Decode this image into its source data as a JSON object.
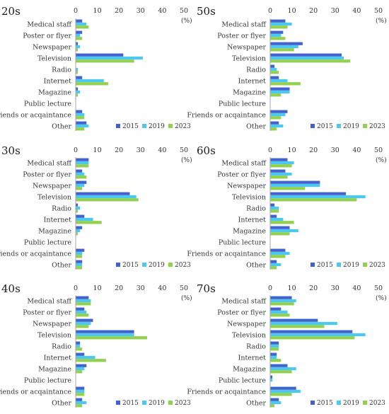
{
  "chart_data": [
    {
      "type": "bar",
      "orientation": "horizontal",
      "title": "20s",
      "unit": "(%)",
      "xlim": [
        0,
        50
      ],
      "xticks": [
        0,
        10,
        20,
        30,
        40,
        50
      ],
      "categories": [
        "Medical staff",
        "Poster or flyer",
        "Newspaper",
        "Television",
        "Radio",
        "Internet",
        "Magazine",
        "Public lecture",
        "Friends or acqaintance",
        "Other"
      ],
      "series": [
        {
          "name": "2015",
          "values": [
            3,
            3,
            1,
            22,
            0,
            3,
            1,
            0,
            3,
            5
          ]
        },
        {
          "name": "2019",
          "values": [
            5,
            2,
            2,
            31,
            1,
            13,
            2,
            0,
            4,
            6
          ]
        },
        {
          "name": "2023",
          "values": [
            6,
            3,
            1,
            27,
            1,
            15,
            1,
            0,
            4,
            4
          ]
        }
      ]
    },
    {
      "type": "bar",
      "orientation": "horizontal",
      "title": "50s",
      "unit": "(%)",
      "xlim": [
        0,
        50
      ],
      "xticks": [
        0,
        10,
        20,
        30,
        40,
        50
      ],
      "categories": [
        "Medical staff",
        "Poster or flyer",
        "Newspaper",
        "Television",
        "Radio",
        "Internet",
        "Magazine",
        "Public lecture",
        "Friends or acqaintance",
        "Other"
      ],
      "series": [
        {
          "name": "2015",
          "values": [
            7,
            6,
            15,
            33,
            2,
            4,
            9,
            0,
            8,
            4
          ]
        },
        {
          "name": "2019",
          "values": [
            10,
            5,
            13,
            34,
            3,
            8,
            9,
            0,
            7,
            6
          ]
        },
        {
          "name": "2023",
          "values": [
            8,
            7,
            11,
            37,
            4,
            14,
            5,
            0,
            5,
            3
          ]
        }
      ]
    },
    {
      "type": "bar",
      "orientation": "horizontal",
      "title": "30s",
      "unit": "(%)",
      "xlim": [
        0,
        50
      ],
      "xticks": [
        0,
        10,
        20,
        30,
        40,
        50
      ],
      "categories": [
        "Medical staff",
        "Poster or flyer",
        "Newspaper",
        "Television",
        "Radio",
        "Internet",
        "Magazine",
        "Public lecture",
        "Friends or acqaintance",
        "Other"
      ],
      "series": [
        {
          "name": "2015",
          "values": [
            6,
            3,
            5,
            25,
            1,
            4,
            3,
            0,
            4,
            3
          ]
        },
        {
          "name": "2019",
          "values": [
            6,
            4,
            4,
            28,
            2,
            8,
            2,
            0,
            3,
            3
          ]
        },
        {
          "name": "2023",
          "values": [
            6,
            5,
            3,
            29,
            1,
            12,
            1,
            0,
            3,
            3
          ]
        }
      ]
    },
    {
      "type": "bar",
      "orientation": "horizontal",
      "title": "60s",
      "unit": "(%)",
      "xlim": [
        0,
        50
      ],
      "xticks": [
        0,
        10,
        20,
        30,
        40,
        50
      ],
      "categories": [
        "Medical staff",
        "Poster or flyer",
        "Newspaper",
        "Television",
        "Radio",
        "Internet",
        "Magazine",
        "Public lecture",
        "Friends or acqaintance",
        "Other"
      ],
      "series": [
        {
          "name": "2015",
          "values": [
            8,
            7,
            23,
            35,
            2,
            3,
            9,
            0,
            7,
            3
          ]
        },
        {
          "name": "2019",
          "values": [
            11,
            10,
            23,
            44,
            4,
            6,
            13,
            0,
            9,
            5
          ]
        },
        {
          "name": "2023",
          "values": [
            10,
            8,
            16,
            40,
            4,
            11,
            9,
            0,
            7,
            3
          ]
        }
      ]
    },
    {
      "type": "bar",
      "orientation": "horizontal",
      "title": "40s",
      "unit": "(%)",
      "xlim": [
        0,
        50
      ],
      "xticks": [
        0,
        10,
        20,
        30,
        40,
        50
      ],
      "categories": [
        "Medical staff",
        "Poster or flyer",
        "Newspaper",
        "Television",
        "Radio",
        "Internet",
        "Magazine",
        "Public lecture",
        "Friends or acqaintance",
        "Other"
      ],
      "series": [
        {
          "name": "2015",
          "values": [
            6,
            4,
            8,
            27,
            2,
            4,
            5,
            0,
            4,
            3
          ]
        },
        {
          "name": "2019",
          "values": [
            7,
            5,
            7,
            27,
            2,
            9,
            4,
            0,
            4,
            5
          ]
        },
        {
          "name": "2023",
          "values": [
            7,
            6,
            6,
            33,
            3,
            14,
            3,
            0,
            4,
            3
          ]
        }
      ]
    },
    {
      "type": "bar",
      "orientation": "horizontal",
      "title": "70s",
      "unit": "(%)",
      "xlim": [
        0,
        50
      ],
      "xticks": [
        0,
        10,
        20,
        30,
        40,
        50
      ],
      "categories": [
        "Medical staff",
        "Poster or flyer",
        "Newspaper",
        "Television",
        "Radio",
        "Internet",
        "Magazine",
        "Public lecture",
        "Friends or acqaintance",
        "Other"
      ],
      "series": [
        {
          "name": "2015",
          "values": [
            10,
            5,
            22,
            38,
            4,
            3,
            8,
            1,
            12,
            4
          ]
        },
        {
          "name": "2019",
          "values": [
            12,
            8,
            31,
            44,
            4,
            3,
            12,
            1,
            14,
            5
          ]
        },
        {
          "name": "2023",
          "values": [
            11,
            9,
            25,
            39,
            4,
            5,
            10,
            0,
            10,
            2
          ]
        }
      ]
    }
  ],
  "legend_position": "bottom-right",
  "grid": false,
  "colors": {
    "2015": "#4462cf",
    "2019": "#4dc9ef",
    "2023": "#92d050",
    "axis": "#a6a6a6",
    "text": "#333333"
  }
}
